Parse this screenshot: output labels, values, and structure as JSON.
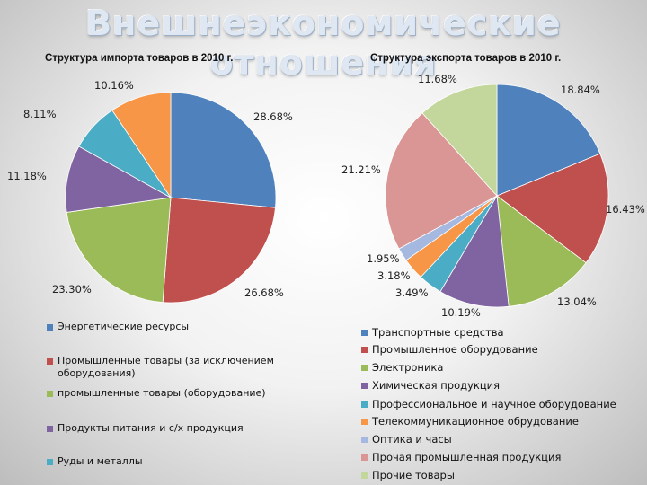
{
  "page": {
    "title": "Внешнеэкономические отношения"
  },
  "chart_data": [
    {
      "type": "pie",
      "title": "Структура импорта товаров в 2010 г.",
      "series": [
        {
          "name": "Энергетические ресурсы",
          "value": 28.68,
          "label": "28.68%",
          "color": "#4f81bd"
        },
        {
          "name": "Промышленные товары (за исключением оборудования)",
          "value": 26.68,
          "label": "26.68%",
          "color": "#c0504d"
        },
        {
          "name": "промышленные товары (оборудование)",
          "value": 23.3,
          "label": "23.30%",
          "color": "#9bbb59"
        },
        {
          "name": "Продукты питания и с/х продукция",
          "value": 11.18,
          "label": "11.18%",
          "color": "#8064a2"
        },
        {
          "name": "Руды и металлы",
          "value": 8.11,
          "label": "8.11%",
          "color": "#4bacc6"
        },
        {
          "name": "",
          "value": 10.16,
          "label": "10.16%",
          "color": "#f79646"
        }
      ],
      "legend_placement": "bottom"
    },
    {
      "type": "pie",
      "title": "Структура экспорта товаров в 2010 г.",
      "series": [
        {
          "name": "Транспортные средства",
          "value": 18.84,
          "label": "18.84%",
          "color": "#4f81bd"
        },
        {
          "name": "Промышленное оборудование",
          "value": 16.43,
          "label": "16.43%",
          "color": "#c0504d"
        },
        {
          "name": "Электроника",
          "value": 13.04,
          "label": "13.04%",
          "color": "#9bbb59"
        },
        {
          "name": "Химическая продукция",
          "value": 10.19,
          "label": "10.19%",
          "color": "#8064a2"
        },
        {
          "name": "Профессиональное и научное оборудование",
          "value": 3.49,
          "label": "3.49%",
          "color": "#4bacc6"
        },
        {
          "name": "Телекоммуникационное обрудование",
          "value": 3.18,
          "label": "3.18%",
          "color": "#f79646"
        },
        {
          "name": "Оптика и часы",
          "value": 1.95,
          "label": "1.95%",
          "color": "#a5b8df"
        },
        {
          "name": "Прочая промышленная продукция",
          "value": 21.21,
          "label": "21.21%",
          "color": "#d99694"
        },
        {
          "name": "Прочие товары",
          "value": 11.68,
          "label": "11.68%",
          "color": "#c3d69b"
        }
      ],
      "legend_placement": "bottom"
    }
  ]
}
